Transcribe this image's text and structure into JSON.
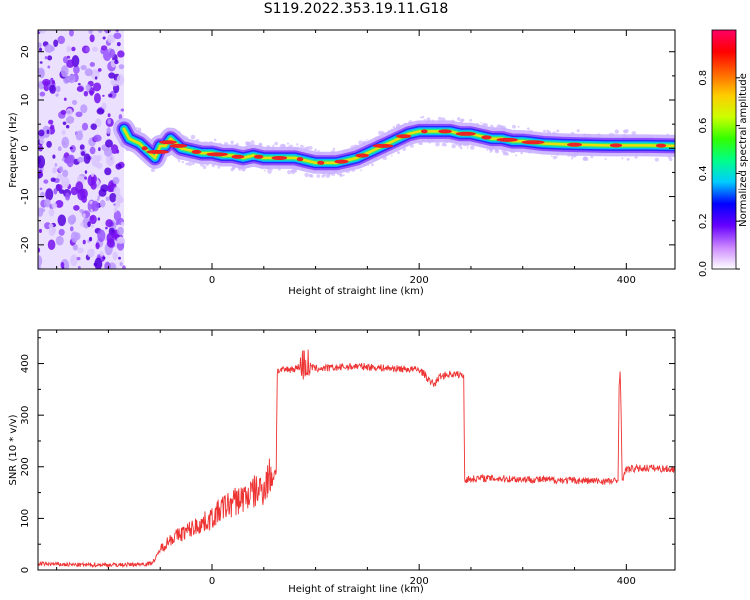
{
  "title": "S119.2022.353.19.11.G18",
  "chart_data": [
    {
      "type": "heatmap",
      "xlabel": "Height of straight line (km)",
      "ylabel": "Frequency (Hz)",
      "xlim": [
        -168,
        447
      ],
      "ylim": [
        -25,
        24.5
      ],
      "x_ticks": [
        0,
        200,
        400
      ],
      "y_ticks": [
        -20,
        -10,
        0,
        10,
        20
      ],
      "colorbar": {
        "label": "Normalized spectral amplitude",
        "range": [
          0,
          1
        ],
        "ticks": [
          "0.0",
          "0.2",
          "0.4",
          "0.6",
          "0.8"
        ],
        "colors": [
          "#ffffff",
          "#cc88ff",
          "#6600ff",
          "#0000ff",
          "#00ccff",
          "#00ff88",
          "#33ff00",
          "#ccff00",
          "#ffcc00",
          "#ff6600",
          "#ff0000",
          "#ff0066"
        ]
      },
      "noise_region": {
        "x_start": -168,
        "x_end": -85
      },
      "ridge": {
        "x": [
          -85,
          -80,
          -70,
          -60,
          -55,
          -50,
          -45,
          -40,
          -35,
          -30,
          -20,
          -10,
          0,
          10,
          20,
          30,
          40,
          50,
          60,
          70,
          80,
          90,
          100,
          110,
          120,
          130,
          140,
          150,
          160,
          170,
          180,
          190,
          200,
          210,
          220,
          230,
          240,
          250,
          260,
          270,
          280,
          290,
          300,
          320,
          340,
          360,
          380,
          400,
          420,
          447
        ],
        "y": [
          4,
          2,
          1,
          -1,
          -2,
          0.5,
          0.5,
          2,
          1,
          0,
          -0.5,
          -1,
          -1,
          -1.5,
          -1.5,
          -2,
          -1.5,
          -2,
          -2,
          -2,
          -2,
          -2.5,
          -3,
          -3,
          -3,
          -2.5,
          -2,
          -1,
          0,
          1,
          2,
          3,
          3.5,
          3.5,
          3.5,
          3.5,
          3,
          3,
          2.5,
          2,
          2,
          1.5,
          1.5,
          1,
          0.8,
          0.7,
          0.6,
          0.6,
          0.6,
          0.5
        ]
      }
    },
    {
      "type": "line",
      "xlabel": "Height of straight line (km)",
      "ylabel": "SNR (10 * v/v)",
      "xlim": [
        -168,
        447
      ],
      "ylim": [
        0,
        465
      ],
      "x_ticks": [
        0,
        200,
        400
      ],
      "y_ticks": [
        0,
        100,
        200,
        300,
        400
      ],
      "series": [
        {
          "color": "#ee3333",
          "x": [
            -168,
            -130,
            -90,
            -60,
            -55,
            -50,
            -45,
            -40,
            -30,
            -20,
            -10,
            0,
            10,
            20,
            30,
            40,
            50,
            55,
            60,
            62,
            63,
            70,
            80,
            85,
            90,
            95,
            100,
            120,
            140,
            160,
            180,
            200,
            205,
            210,
            215,
            220,
            230,
            240,
            243,
            244,
            260,
            300,
            340,
            380,
            392,
            393,
            394,
            395,
            396,
            400,
            420,
            447
          ],
          "y": [
            12,
            10,
            10,
            12,
            20,
            40,
            50,
            60,
            70,
            80,
            90,
            100,
            120,
            130,
            140,
            150,
            160,
            180,
            190,
            190,
            385,
            388,
            390,
            395,
            400,
            395,
            390,
            392,
            395,
            392,
            390,
            388,
            380,
            365,
            360,
            375,
            380,
            378,
            375,
            175,
            178,
            176,
            174,
            172,
            172,
            360,
            390,
            300,
            175,
            195,
            198,
            195
          ]
        }
      ]
    }
  ]
}
